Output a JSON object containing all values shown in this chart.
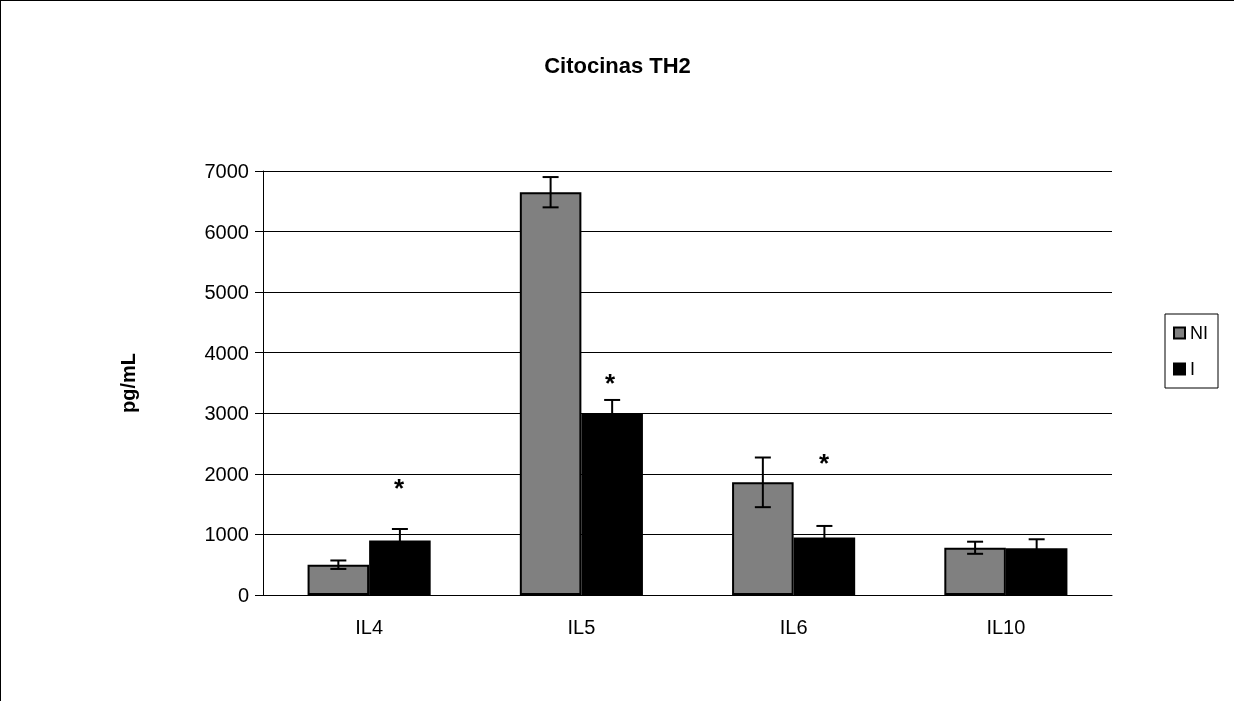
{
  "chart_data": {
    "type": "bar",
    "title": "Citocinas TH2",
    "ylabel": "pg/mL",
    "categories": [
      "IL4",
      "IL5",
      "IL6",
      "IL10"
    ],
    "series": [
      {
        "name": "NI",
        "color": "#808080",
        "values": [
          500,
          6650,
          1860,
          780
        ],
        "errors": [
          70,
          250,
          410,
          100
        ]
      },
      {
        "name": "I",
        "color": "#000000",
        "values": [
          900,
          3000,
          950,
          770
        ],
        "errors": [
          190,
          220,
          190,
          150
        ]
      }
    ],
    "ylim": [
      0,
      7000
    ],
    "yticks": [
      0,
      1000,
      2000,
      3000,
      4000,
      5000,
      6000,
      7000
    ],
    "grid": "y",
    "legend": "right",
    "annotations": [
      "*",
      "*",
      "*"
    ]
  }
}
